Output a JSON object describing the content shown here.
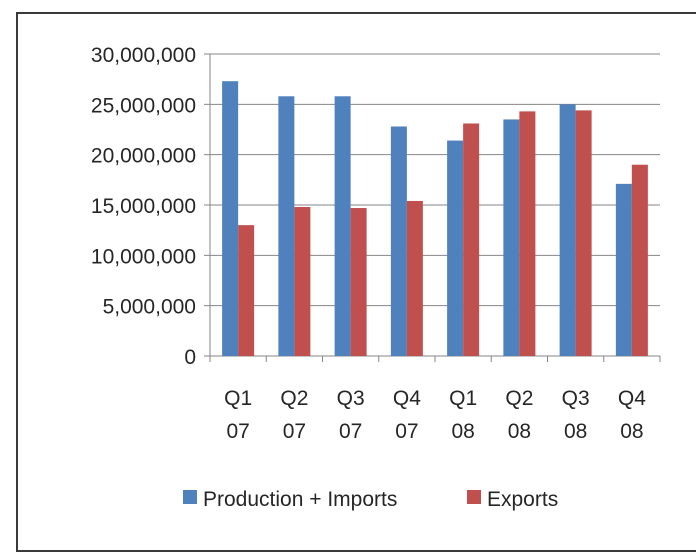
{
  "chart_data": {
    "type": "bar",
    "title": "",
    "xlabel": "",
    "ylabel": "",
    "categories": [
      [
        "Q1",
        "07"
      ],
      [
        "Q2",
        "07"
      ],
      [
        "Q3",
        "07"
      ],
      [
        "Q4",
        "07"
      ],
      [
        "Q1",
        "08"
      ],
      [
        "Q2",
        "08"
      ],
      [
        "Q3",
        "08"
      ],
      [
        "Q4",
        "08"
      ]
    ],
    "ylim": [
      0,
      30000000
    ],
    "y_ticks": [
      0,
      5000000,
      10000000,
      15000000,
      20000000,
      25000000,
      30000000
    ],
    "y_tick_labels": [
      "0",
      "5,000,000",
      "10,000,000",
      "15,000,000",
      "20,000,000",
      "25,000,000",
      "30,000,000"
    ],
    "grid": true,
    "legend_position": "bottom",
    "series": [
      {
        "name": "Production + Imports",
        "color": "#4f81bd",
        "values": [
          27300000,
          25800000,
          25800000,
          22800000,
          21400000,
          23500000,
          25000000,
          17100000
        ]
      },
      {
        "name": "Exports",
        "color": "#c0504d",
        "values": [
          13000000,
          14800000,
          14700000,
          15400000,
          23100000,
          24300000,
          24400000,
          19000000
        ]
      }
    ]
  }
}
